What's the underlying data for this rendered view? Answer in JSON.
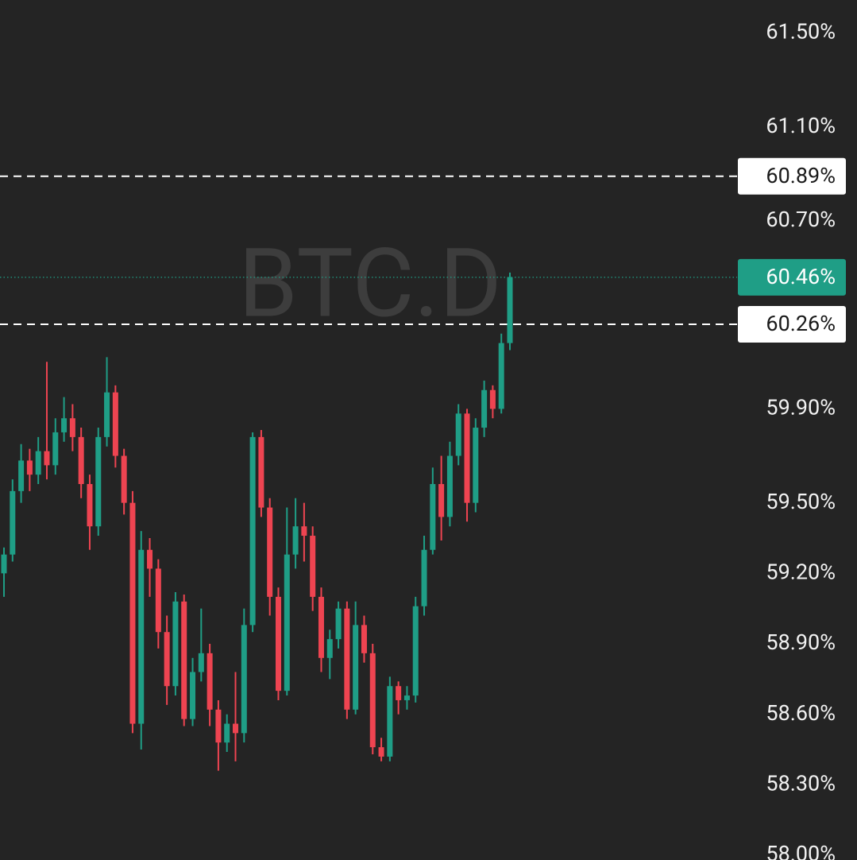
{
  "chart_data": {
    "type": "candlestick",
    "watermark": "BTC.D",
    "background": "#242424",
    "up_color": "#1f9e86",
    "down_color": "#ee4451",
    "ylim": [
      57.98,
      61.64
    ],
    "yticks": [
      {
        "value": 61.5,
        "label": "61.50%"
      },
      {
        "value": 61.1,
        "label": "61.10%"
      },
      {
        "value": 60.7,
        "label": "60.70%"
      },
      {
        "value": 59.9,
        "label": "59.90%"
      },
      {
        "value": 59.5,
        "label": "59.50%"
      },
      {
        "value": 59.2,
        "label": "59.20%"
      },
      {
        "value": 58.9,
        "label": "58.90%"
      },
      {
        "value": 58.6,
        "label": "58.60%"
      },
      {
        "value": 58.3,
        "label": "58.30%"
      },
      {
        "value": 58.0,
        "label": "58.00%"
      }
    ],
    "price_lines": [
      {
        "value": 60.89,
        "label": "60.89%",
        "style": "dashed"
      },
      {
        "value": 60.46,
        "label": "60.46%",
        "style": "current"
      },
      {
        "value": 60.26,
        "label": "60.26%",
        "style": "dashed"
      }
    ],
    "open": [
      59.2,
      59.28,
      59.55,
      59.68,
      59.62,
      59.72,
      59.66,
      59.8,
      59.86,
      59.78,
      59.58,
      59.4,
      59.78,
      59.97,
      59.7,
      59.5,
      58.56,
      59.3,
      59.22,
      58.95,
      58.72,
      59.08,
      58.58,
      58.78,
      58.86,
      58.62,
      58.48,
      58.56,
      58.52,
      58.98,
      59.78,
      59.48,
      59.1,
      58.7,
      59.28,
      59.4,
      59.36,
      59.1,
      58.84,
      58.92,
      59.05,
      58.62,
      58.98,
      58.86,
      58.46,
      58.42,
      58.72,
      58.66,
      58.68,
      59.06,
      59.3,
      59.58,
      59.44,
      59.7,
      59.88,
      59.5,
      59.82,
      59.98,
      59.9,
      60.18
    ],
    "high": [
      59.31,
      59.6,
      59.75,
      59.73,
      59.78,
      60.1,
      59.86,
      59.95,
      59.92,
      59.82,
      59.62,
      59.82,
      60.12,
      60.0,
      59.73,
      59.55,
      59.38,
      59.35,
      59.26,
      59.02,
      59.12,
      59.11,
      58.84,
      59.05,
      58.9,
      58.66,
      58.6,
      58.78,
      59.05,
      59.8,
      59.81,
      59.52,
      59.14,
      59.48,
      59.52,
      59.5,
      59.4,
      59.14,
      58.96,
      59.08,
      59.08,
      59.08,
      59.02,
      58.9,
      58.5,
      58.76,
      58.74,
      58.72,
      59.1,
      59.36,
      59.65,
      59.7,
      59.76,
      59.92,
      59.9,
      59.86,
      60.02,
      60.0,
      60.22,
      60.48
    ],
    "low": [
      59.1,
      59.25,
      59.5,
      59.55,
      59.58,
      59.6,
      59.62,
      59.76,
      59.72,
      59.52,
      59.3,
      59.36,
      59.74,
      59.65,
      59.45,
      58.52,
      58.45,
      59.1,
      58.88,
      58.64,
      58.68,
      58.55,
      58.55,
      58.74,
      58.55,
      58.36,
      58.44,
      58.4,
      58.48,
      58.95,
      59.44,
      59.02,
      58.66,
      58.68,
      59.22,
      59.25,
      59.04,
      58.78,
      58.75,
      58.88,
      58.58,
      58.6,
      58.82,
      58.43,
      58.4,
      58.4,
      58.6,
      58.62,
      58.65,
      59.02,
      59.28,
      59.34,
      59.4,
      59.66,
      59.42,
      59.46,
      59.78,
      59.86,
      59.88,
      60.15
    ],
    "close": [
      59.28,
      59.55,
      59.68,
      59.62,
      59.72,
      59.66,
      59.8,
      59.86,
      59.78,
      59.58,
      59.4,
      59.78,
      59.97,
      59.7,
      59.5,
      58.56,
      59.3,
      59.22,
      58.95,
      58.72,
      59.08,
      58.58,
      58.78,
      58.86,
      58.62,
      58.48,
      58.56,
      58.52,
      58.98,
      59.78,
      59.48,
      59.1,
      58.7,
      59.28,
      59.4,
      59.36,
      59.1,
      58.84,
      58.92,
      59.05,
      58.62,
      58.98,
      58.86,
      58.46,
      58.42,
      58.72,
      58.66,
      58.68,
      59.06,
      59.3,
      59.58,
      59.44,
      59.7,
      59.88,
      59.5,
      59.82,
      59.98,
      59.9,
      60.18,
      60.46
    ]
  }
}
